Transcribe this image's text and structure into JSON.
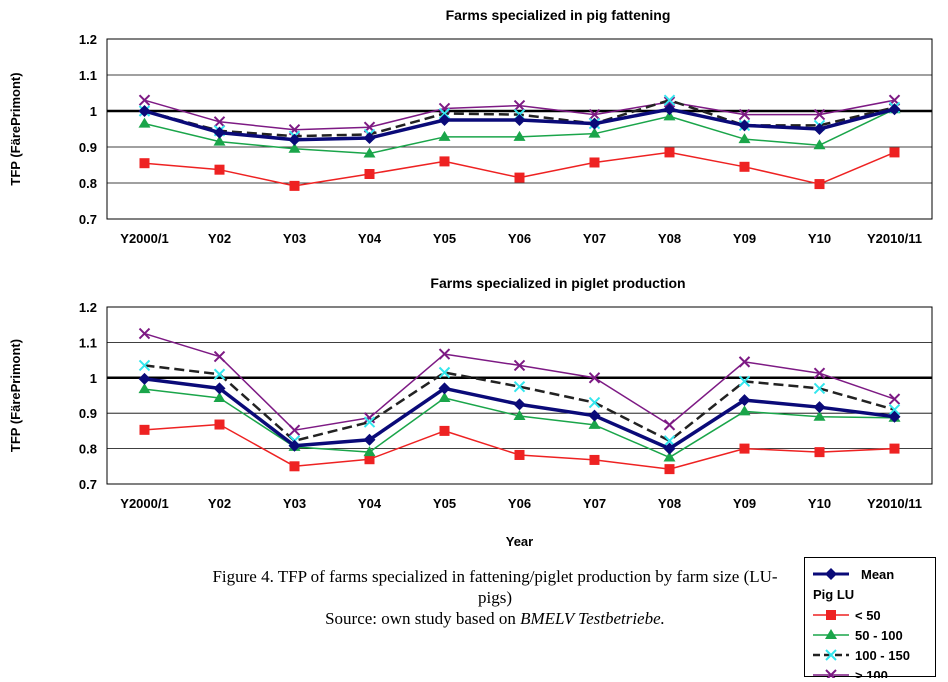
{
  "chart_data": [
    {
      "type": "line",
      "title": "Farms specialized in pig fattening",
      "ylabel": "TFP (FärePrimont)",
      "xlabel": "",
      "ylim": [
        0.7,
        1.2
      ],
      "yticks": [
        "0.7",
        "0.8",
        "0.9",
        "1",
        "1.1",
        "1.2"
      ],
      "reference_line": 1.0,
      "grid": true,
      "categories": [
        "Y2000/1",
        "Y02",
        "Y03",
        "Y04",
        "Y05",
        "Y06",
        "Y07",
        "Y08",
        "Y09",
        "Y10",
        "Y2010/11"
      ],
      "series": [
        {
          "name": "Mean",
          "values": [
            1.0,
            0.94,
            0.92,
            0.925,
            0.975,
            0.975,
            0.965,
            1.005,
            0.96,
            0.95,
            1.005
          ]
        },
        {
          "name": "< 50",
          "values": [
            0.855,
            0.837,
            0.792,
            0.825,
            0.86,
            0.815,
            0.857,
            0.885,
            0.845,
            0.797,
            0.885
          ]
        },
        {
          "name": "50 - 100",
          "values": [
            0.965,
            0.915,
            0.895,
            0.882,
            0.928,
            0.928,
            0.937,
            0.985,
            0.922,
            0.905,
            1.005
          ]
        },
        {
          "name": "100 - 150",
          "values": [
            1.0,
            0.945,
            0.93,
            0.935,
            0.993,
            0.99,
            0.965,
            1.03,
            0.96,
            0.96,
            1.01
          ]
        },
        {
          "name": "> 100",
          "values": [
            1.03,
            0.97,
            0.948,
            0.955,
            1.007,
            1.015,
            0.99,
            1.025,
            0.99,
            0.99,
            1.03
          ]
        }
      ]
    },
    {
      "type": "line",
      "title": "Farms specialized in piglet production",
      "ylabel": "TFP (FärePrimont)",
      "xlabel": "Year",
      "ylim": [
        0.7,
        1.2
      ],
      "yticks": [
        "0.7",
        "0.8",
        "0.9",
        "1",
        "1.1",
        "1.2"
      ],
      "reference_line": 1.0,
      "grid": true,
      "categories": [
        "Y2000/1",
        "Y02",
        "Y03",
        "Y04",
        "Y05",
        "Y06",
        "Y07",
        "Y08",
        "Y09",
        "Y10",
        "Y2010/11"
      ],
      "series": [
        {
          "name": "Mean",
          "values": [
            0.997,
            0.97,
            0.808,
            0.825,
            0.97,
            0.925,
            0.893,
            0.8,
            0.937,
            0.917,
            0.89
          ]
        },
        {
          "name": "< 50",
          "values": [
            0.853,
            0.868,
            0.75,
            0.77,
            0.85,
            0.782,
            0.768,
            0.742,
            0.8,
            0.79,
            0.8
          ]
        },
        {
          "name": "50 - 100",
          "values": [
            0.968,
            0.943,
            0.805,
            0.79,
            0.943,
            0.892,
            0.867,
            0.775,
            0.905,
            0.89,
            0.887
          ]
        },
        {
          "name": "100 - 150",
          "values": [
            1.035,
            1.01,
            0.822,
            0.875,
            1.015,
            0.975,
            0.93,
            0.822,
            0.99,
            0.97,
            0.91
          ]
        },
        {
          "name": "> 100",
          "values": [
            1.125,
            1.06,
            0.852,
            0.887,
            1.067,
            1.035,
            1.0,
            0.867,
            1.045,
            1.013,
            0.94
          ]
        }
      ]
    }
  ],
  "styles": {
    "Mean": {
      "color": "#0a0a78",
      "marker": "diamond",
      "dash": ""
    },
    "< 50": {
      "color": "#ee2222",
      "marker": "square",
      "dash": ""
    },
    "50 - 100": {
      "color": "#1aa54a",
      "marker": "triangle",
      "dash": ""
    },
    "100 - 150": {
      "color": "#222222",
      "marker": "x",
      "marker_color": "#33e6ee",
      "dash": "dashed"
    },
    "> 100": {
      "color": "#7d1a84",
      "marker": "x",
      "dash": ""
    }
  },
  "legend": {
    "entries": [
      "Mean",
      "< 50",
      "50 - 100",
      "100 - 150",
      "> 100"
    ],
    "group_label": "Pig LU",
    "placement": "bottom-right"
  },
  "caption": {
    "line1": "Figure 4. TFP of farms specialized in fattening/piglet production by farm size (LU-pigs)",
    "line2_prefix": "Source: own study based on ",
    "line2_italic": "BMELV Testbetriebe."
  }
}
